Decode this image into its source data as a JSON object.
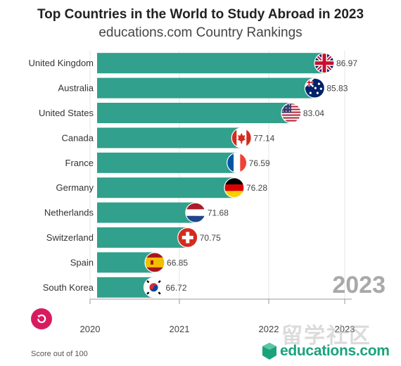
{
  "header": {
    "title": "Top Countries in the World to Study Abroad in 2023",
    "subtitle": "educations.com Country Rankings"
  },
  "chart_data": {
    "type": "bar",
    "orientation": "horizontal",
    "categories": [
      "United Kingdom",
      "Australia",
      "United States",
      "Canada",
      "France",
      "Germany",
      "Netherlands",
      "Switzerland",
      "Spain",
      "South Korea"
    ],
    "values": [
      86.97,
      85.83,
      83.04,
      77.14,
      76.59,
      76.28,
      71.68,
      70.75,
      66.85,
      66.72
    ],
    "value_labels": [
      "86.97",
      "85.83",
      "83.04",
      "77.14",
      "76.59",
      "76.28",
      "71.68",
      "70.75",
      "66.85",
      "66.72"
    ],
    "bar_color": "#31a08c",
    "x_ticks": [
      "2020",
      "2021",
      "2022",
      "2023"
    ],
    "year": "2023",
    "grid": true
  },
  "flags": [
    "uk-flag",
    "australia-flag",
    "us-flag",
    "canada-flag",
    "france-flag",
    "germany-flag",
    "netherlands-flag",
    "switzerland-flag",
    "spain-flag",
    "south-korea-flag"
  ],
  "footer": {
    "note": "Score out of 100",
    "brand": "educations.com",
    "watermark": "留学社区"
  },
  "colors": {
    "accent": "#d81b60",
    "brand": "#1aa37a"
  }
}
